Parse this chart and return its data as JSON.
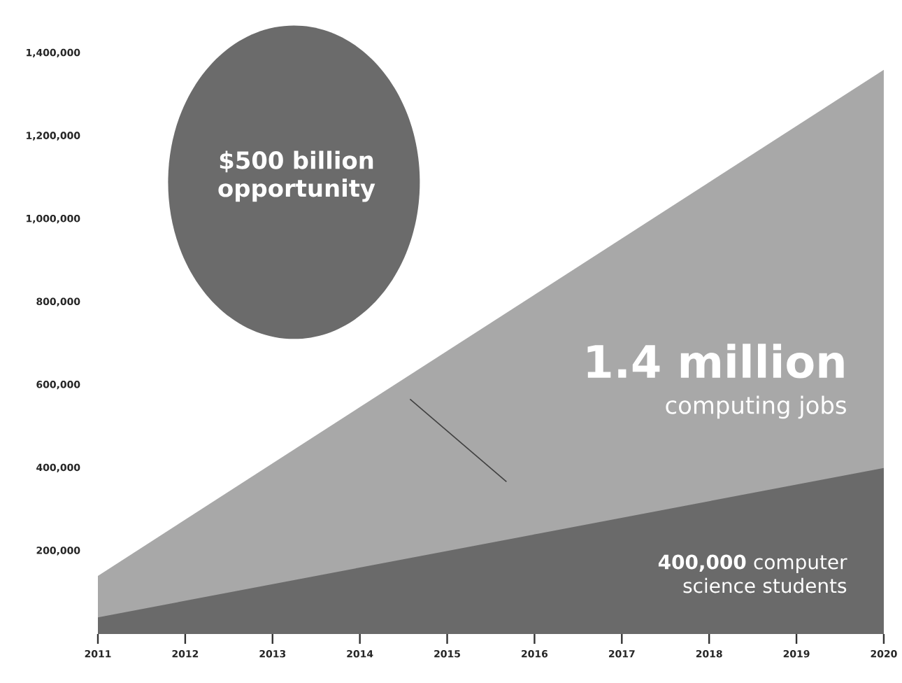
{
  "chart_data": {
    "type": "area",
    "x": [
      2011,
      2020
    ],
    "series": [
      {
        "color": "#a8a8a8",
        "values": [
          140000,
          1360000
        ]
      },
      {
        "color": "#6a6a6a",
        "values": [
          40000,
          400000
        ]
      }
    ],
    "xlim": [
      2011,
      2020
    ],
    "xticks": [
      2011,
      2012,
      2013,
      2014,
      2015,
      2016,
      2017,
      2018,
      2019,
      2020
    ],
    "ylim": [
      0,
      1400000
    ],
    "yticks": [
      {
        "value": 200000,
        "label": "200,000"
      },
      {
        "value": 400000,
        "label": "400,000"
      },
      {
        "value": 600000,
        "label": "600,000"
      },
      {
        "value": 800000,
        "label": "800,000"
      },
      {
        "value": 1000000,
        "label": "1,000,000"
      },
      {
        "value": 1200000,
        "label": "1,200,000"
      },
      {
        "value": 1400000,
        "label": "1,400,000"
      }
    ],
    "annotations": [
      "$500 billion opportunity",
      "1.4 million",
      "computing jobs",
      "**400,000** computer science students"
    ]
  }
}
